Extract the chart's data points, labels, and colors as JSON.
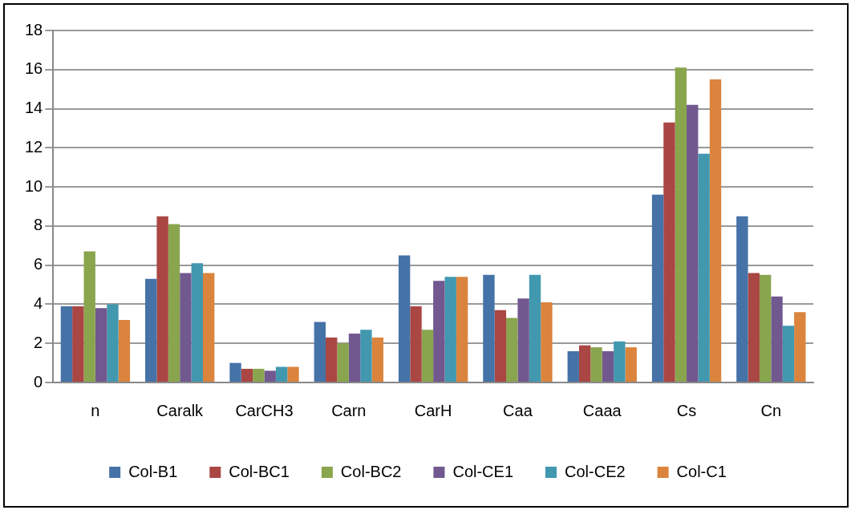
{
  "chart_data": {
    "type": "bar",
    "categories": [
      "n",
      "Caralk",
      "CarCH3",
      "Carn",
      "CarH",
      "Caa",
      "Caaa",
      "Cs",
      "Cn"
    ],
    "series": [
      {
        "name": "Col-B1",
        "color": "#4572a7",
        "values": [
          3.9,
          5.3,
          1.0,
          3.1,
          6.5,
          5.5,
          1.6,
          9.6,
          8.5
        ]
      },
      {
        "name": "Col-BC1",
        "color": "#aa4643",
        "values": [
          3.9,
          8.5,
          0.7,
          2.3,
          3.9,
          3.7,
          1.9,
          13.3,
          5.6
        ]
      },
      {
        "name": "Col-BC2",
        "color": "#89a54e",
        "values": [
          6.7,
          8.1,
          0.7,
          2.0,
          2.7,
          3.3,
          1.8,
          16.1,
          5.5
        ]
      },
      {
        "name": "Col-CE1",
        "color": "#71588f",
        "values": [
          3.8,
          5.6,
          0.6,
          2.5,
          5.2,
          4.3,
          1.6,
          14.2,
          4.4
        ]
      },
      {
        "name": "Col-CE2",
        "color": "#4198af",
        "values": [
          4.0,
          6.1,
          0.8,
          2.7,
          5.4,
          5.5,
          2.1,
          11.7,
          2.9
        ]
      },
      {
        "name": "Col-C1",
        "color": "#db843d",
        "values": [
          3.2,
          5.6,
          0.8,
          2.3,
          5.4,
          4.1,
          1.8,
          15.5,
          3.6
        ]
      }
    ],
    "ylim": [
      0,
      18
    ],
    "yticks": [
      0,
      2,
      4,
      6,
      8,
      10,
      12,
      14,
      16,
      18
    ],
    "grid": "y",
    "legend": "bottom"
  }
}
